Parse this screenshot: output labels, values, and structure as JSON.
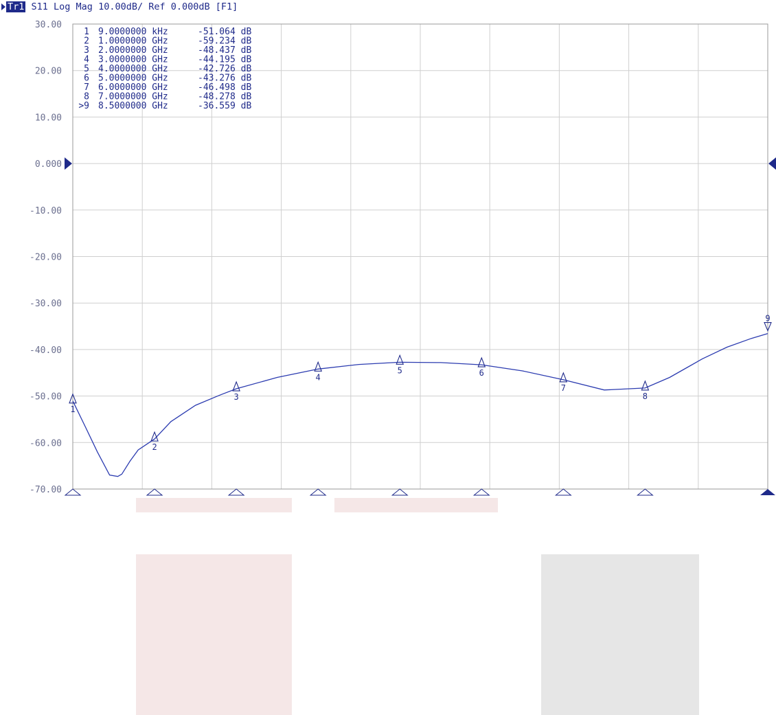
{
  "header": {
    "badge": "Tr1",
    "text": "S11 Log Mag 10.00dB/ Ref 0.000dB [F1]"
  },
  "colors": {
    "trace": "#2b3bb0",
    "grid": "#cfcfcf",
    "frame": "#9a9a9a",
    "marker": "#1f2a8a",
    "block_pink": "#f5e7e7",
    "block_gray": "#e6e6e6"
  },
  "chart_data": {
    "type": "line",
    "title": "S11 Log Mag 10.00dB/ Ref 0.000dB [F1]",
    "xlabel": "",
    "ylabel": "",
    "x_unit": "GHz",
    "xlim": [
      9e-06,
      8.5
    ],
    "ylim": [
      -70,
      30
    ],
    "y_ticks": [
      "30.00",
      "20.00",
      "10.00",
      "0.000",
      "-10.00",
      "-20.00",
      "-30.00",
      "-40.00",
      "-50.00",
      "-60.00",
      "-70.00"
    ],
    "reference_level": 0,
    "grid": true,
    "grid_divisions_x": 10,
    "grid_divisions_y": 10,
    "series": [
      {
        "x": [
          9e-06,
          0.15,
          0.3,
          0.45,
          0.55,
          0.6,
          0.7,
          0.8,
          1.0,
          1.2,
          1.5,
          1.8,
          2.0,
          2.5,
          3.0,
          3.5,
          4.0,
          4.5,
          5.0,
          5.5,
          6.0,
          6.5,
          7.0,
          7.3,
          7.5,
          7.7,
          8.0,
          8.3,
          8.5
        ],
        "y": [
          -51.064,
          -56.5,
          -62.0,
          -67.0,
          -67.3,
          -66.8,
          -64.0,
          -61.6,
          -59.234,
          -55.5,
          -52.0,
          -49.8,
          -48.437,
          -46.0,
          -44.195,
          -43.2,
          -42.726,
          -42.8,
          -43.276,
          -44.6,
          -46.498,
          -48.7,
          -48.278,
          -46.0,
          -44.0,
          -42.0,
          -39.5,
          -37.6,
          -36.559
        ]
      }
    ],
    "markers": [
      {
        "id": "1",
        "label": "1",
        "freq": "9.0000000 kHz",
        "value": "-51.064 dB",
        "x": 9e-06,
        "y": -51.064,
        "active": false
      },
      {
        "id": "2",
        "label": "2",
        "freq": "1.0000000 GHz",
        "value": "-59.234 dB",
        "x": 1.0,
        "y": -59.234,
        "active": false
      },
      {
        "id": "3",
        "label": "3",
        "freq": "2.0000000 GHz",
        "value": "-48.437 dB",
        "x": 2.0,
        "y": -48.437,
        "active": false
      },
      {
        "id": "4",
        "label": "4",
        "freq": "3.0000000 GHz",
        "value": "-44.195 dB",
        "x": 3.0,
        "y": -44.195,
        "active": false
      },
      {
        "id": "5",
        "label": "5",
        "freq": "4.0000000 GHz",
        "value": "-42.726 dB",
        "x": 4.0,
        "y": -42.726,
        "active": false
      },
      {
        "id": "6",
        "label": "6",
        "freq": "5.0000000 GHz",
        "value": "-43.276 dB",
        "x": 5.0,
        "y": -43.276,
        "active": false
      },
      {
        "id": "7",
        "label": "7",
        "freq": "6.0000000 GHz",
        "value": "-46.498 dB",
        "x": 6.0,
        "y": -46.498,
        "active": false
      },
      {
        "id": "8",
        "label": "8",
        "freq": "7.0000000 GHz",
        "value": "-48.278 dB",
        "x": 7.0,
        "y": -48.278,
        "active": false
      },
      {
        "id": "9",
        "label": ">9",
        "freq": "8.5000000 GHz",
        "value": "-36.559 dB",
        "x": 8.5,
        "y": -36.559,
        "active": true
      }
    ]
  }
}
